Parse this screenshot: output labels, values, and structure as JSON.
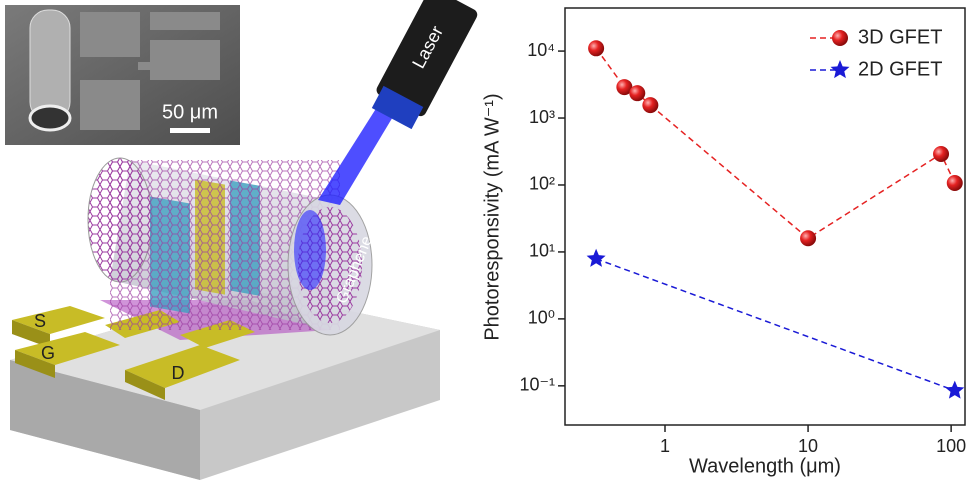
{
  "illustration": {
    "scale_bar": "50 μm",
    "laser": "Laser",
    "graphene": "Graphene",
    "source": "S",
    "gate": "G",
    "drain": "D"
  },
  "chart_data": {
    "type": "line",
    "x_label": "Wavelength (μm)",
    "y_label": "Photoresponsivity (mA W⁻¹)",
    "x_scale": "log",
    "y_scale": "log",
    "xlim": [
      0.2,
      125
    ],
    "ylim": [
      0.026,
      44000
    ],
    "xticks": [
      1,
      10,
      100
    ],
    "yticks": [
      {
        "value": 0.1,
        "label": "10⁻¹"
      },
      {
        "value": 1,
        "label": "10⁰"
      },
      {
        "value": 10,
        "label": "10¹"
      },
      {
        "value": 100,
        "label": "10²"
      },
      {
        "value": 1000,
        "label": "10³"
      },
      {
        "value": 10000,
        "label": "10⁴"
      }
    ],
    "legend": "upper right",
    "series": [
      {
        "name": "3D GFET",
        "color": "#e52222",
        "marker": "circle",
        "x": [
          0.33,
          0.52,
          0.64,
          0.79,
          10,
          85,
          106
        ],
        "values": [
          11000,
          2900,
          2350,
          1560,
          16,
          290,
          107
        ]
      },
      {
        "name": "2D GFET",
        "color": "#1a1ad6",
        "marker": "star",
        "x": [
          0.33,
          106
        ],
        "values": [
          7.9,
          0.085
        ]
      }
    ]
  }
}
